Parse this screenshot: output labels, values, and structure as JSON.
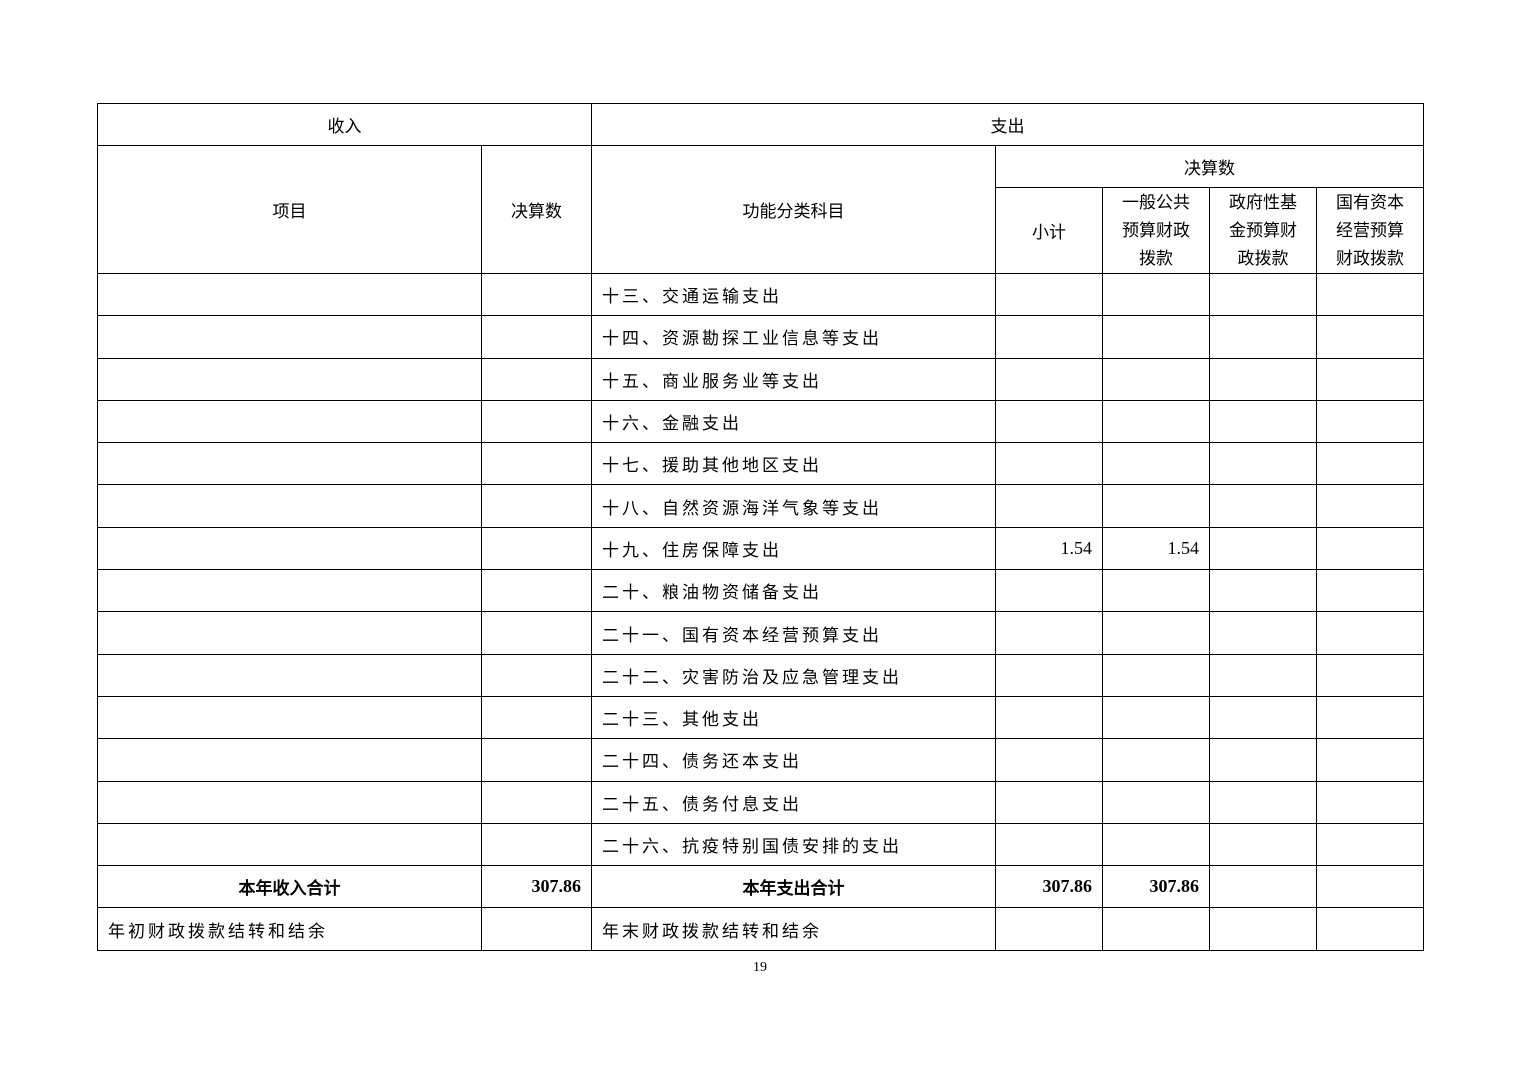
{
  "header": {
    "income": "收入",
    "expense": "支出",
    "item": "项目",
    "income_amount": "决算数",
    "function_category": "功能分类科目",
    "expense_amount": "决算数",
    "subtotal": "小计",
    "general_budget": "一般公共预算财政拨款",
    "gov_fund": "政府性基金预算财政拨款",
    "state_capital": "国有资本经营预算财政拨款"
  },
  "rows": [
    {
      "item": "",
      "amount": "",
      "category": "十三、交通运输支出",
      "subtotal": "",
      "general": "",
      "fund": "",
      "capital": ""
    },
    {
      "item": "",
      "amount": "",
      "category": "十四、资源勘探工业信息等支出",
      "subtotal": "",
      "general": "",
      "fund": "",
      "capital": ""
    },
    {
      "item": "",
      "amount": "",
      "category": "十五、商业服务业等支出",
      "subtotal": "",
      "general": "",
      "fund": "",
      "capital": ""
    },
    {
      "item": "",
      "amount": "",
      "category": "十六、金融支出",
      "subtotal": "",
      "general": "",
      "fund": "",
      "capital": ""
    },
    {
      "item": "",
      "amount": "",
      "category": "十七、援助其他地区支出",
      "subtotal": "",
      "general": "",
      "fund": "",
      "capital": ""
    },
    {
      "item": "",
      "amount": "",
      "category": "十八、自然资源海洋气象等支出",
      "subtotal": "",
      "general": "",
      "fund": "",
      "capital": ""
    },
    {
      "item": "",
      "amount": "",
      "category": "十九、住房保障支出",
      "subtotal": "1.54",
      "general": "1.54",
      "fund": "",
      "capital": ""
    },
    {
      "item": "",
      "amount": "",
      "category": "二十、粮油物资储备支出",
      "subtotal": "",
      "general": "",
      "fund": "",
      "capital": ""
    },
    {
      "item": "",
      "amount": "",
      "category": "二十一、国有资本经营预算支出",
      "subtotal": "",
      "general": "",
      "fund": "",
      "capital": ""
    },
    {
      "item": "",
      "amount": "",
      "category": "二十二、灾害防治及应急管理支出",
      "subtotal": "",
      "general": "",
      "fund": "",
      "capital": ""
    },
    {
      "item": "",
      "amount": "",
      "category": "二十三、其他支出",
      "subtotal": "",
      "general": "",
      "fund": "",
      "capital": ""
    },
    {
      "item": "",
      "amount": "",
      "category": "二十四、债务还本支出",
      "subtotal": "",
      "general": "",
      "fund": "",
      "capital": ""
    },
    {
      "item": "",
      "amount": "",
      "category": "二十五、债务付息支出",
      "subtotal": "",
      "general": "",
      "fund": "",
      "capital": ""
    },
    {
      "item": "",
      "amount": "",
      "category": "二十六、抗疫特别国债安排的支出",
      "subtotal": "",
      "general": "",
      "fund": "",
      "capital": ""
    }
  ],
  "totals": {
    "income_label": "本年收入合计",
    "income_amount": "307.86",
    "expense_label": "本年支出合计",
    "subtotal": "307.86",
    "general": "307.86",
    "fund": "",
    "capital": ""
  },
  "carryover": {
    "income_label": "年初财政拨款结转和结余",
    "expense_label": "年末财政拨款结转和结余"
  },
  "page_number": "19"
}
